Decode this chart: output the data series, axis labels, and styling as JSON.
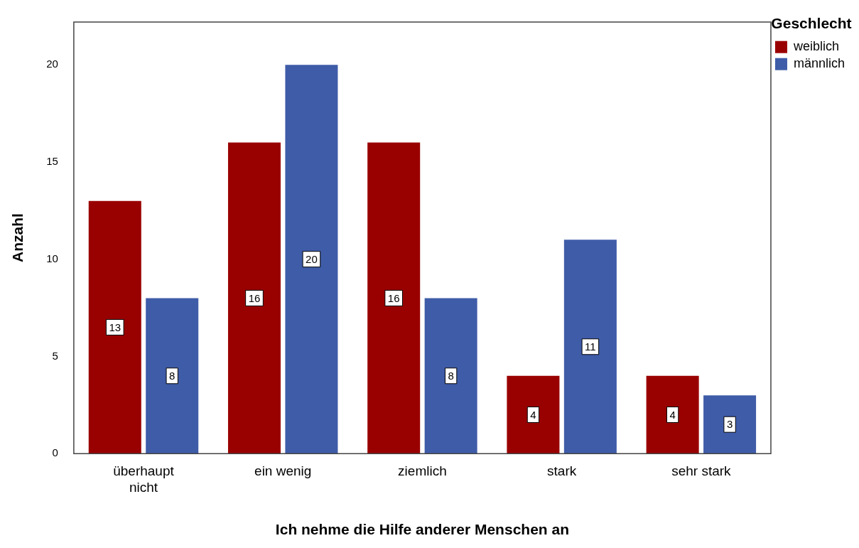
{
  "chart_data": {
    "type": "bar",
    "xlabel": "Ich nehme die Hilfe anderer Menschen an",
    "ylabel": "Anzahl",
    "legend_title": "Geschlecht",
    "legend": "top right",
    "categories": [
      "überhaupt nicht",
      "ein wenig",
      "ziemlich",
      "stark",
      "sehr stark"
    ],
    "series": [
      {
        "name": "weiblich",
        "color": "#990000",
        "values": [
          13,
          16,
          16,
          4,
          4
        ]
      },
      {
        "name": "männlich",
        "color": "#3f5ca8",
        "values": [
          8,
          20,
          8,
          11,
          3
        ]
      }
    ],
    "ylim": [
      0,
      22.2
    ],
    "yticks": [
      0,
      5,
      10,
      15,
      20
    ],
    "grid": false,
    "data_labels": true
  }
}
